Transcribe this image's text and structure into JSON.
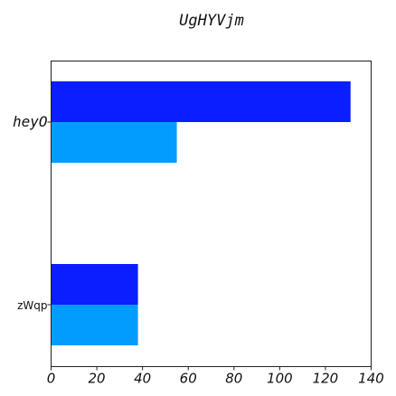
{
  "chart_data": {
    "type": "bar",
    "orientation": "horizontal",
    "title": "UgHYVjm",
    "xlabel": "",
    "ylabel": "",
    "categories": [
      "heyO",
      "zWqp"
    ],
    "series": [
      {
        "values": [
          131,
          38
        ],
        "color": "#0a1eff"
      },
      {
        "values": [
          55,
          38
        ],
        "color": "#009dff"
      }
    ],
    "xlim": [
      0,
      140
    ],
    "x_ticks": [
      0,
      20,
      40,
      60,
      80,
      100,
      120,
      140
    ],
    "grid": false,
    "legend": "none"
  }
}
